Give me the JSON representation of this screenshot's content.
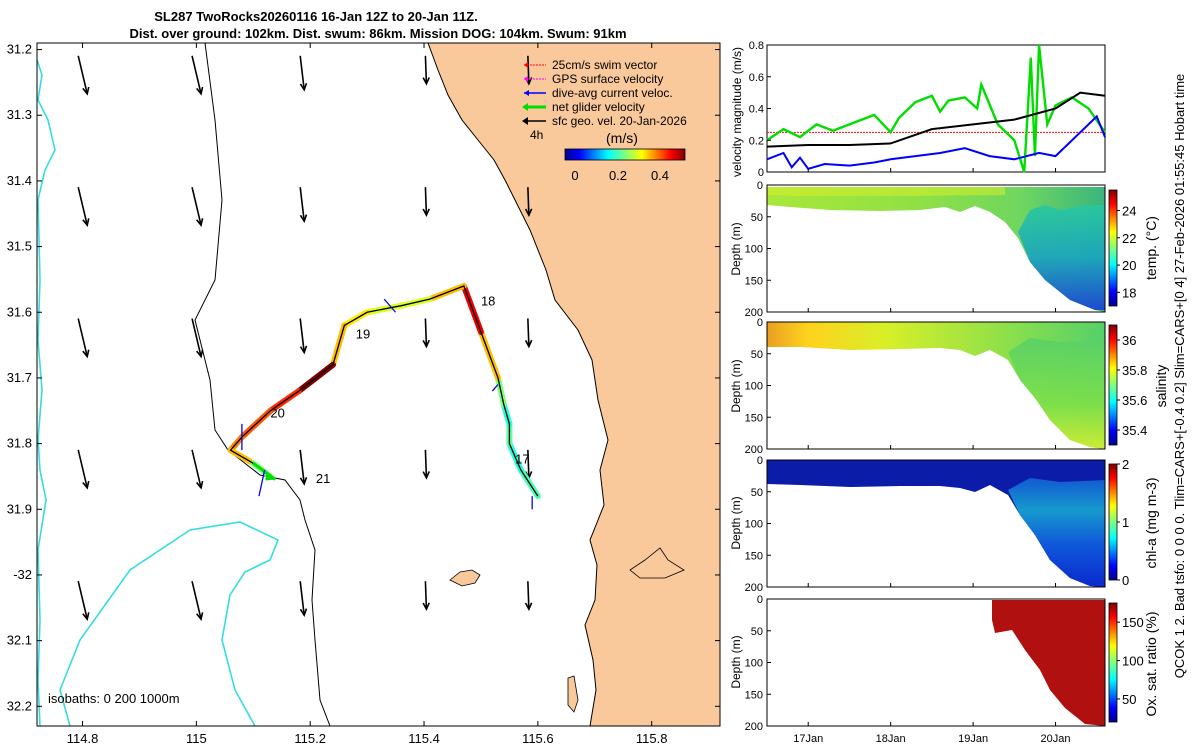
{
  "header": {
    "line1": "SL287 TwoRocks20260116 16-Jan 12Z to 20-Jan 11Z.",
    "line2": "Dist. over ground: 102km. Dist. swum: 86km. Mission DOG: 104km. Swum: 91km"
  },
  "side_text": "QCOK 1  2. Bad tsfo: 0  0  0  0. Tlim=CARS+[-0.4 0.2] Slim=CARS+[0 4] 27-Feb-2026 01:55:45 Hobart time",
  "map": {
    "legend": [
      {
        "label": "25cm/s swim vector",
        "color": "#ff0000"
      },
      {
        "label": "GPS surface velocity",
        "color": "#ff00ff"
      },
      {
        "label": "dive-avg current veloc.",
        "color": "#0000ff"
      },
      {
        "label": "net glider velocity",
        "color": "#00dd00"
      },
      {
        "label": "sfc geo. vel. 20-Jan-2026",
        "color": "#000000"
      }
    ],
    "interval_label": "4h",
    "colorbar_title": "(m/s)",
    "colorbar_ticks": [
      "0",
      "0.2",
      "0.4"
    ],
    "isobath_text": "isobaths: 0   200  1000m",
    "day_labels": [
      "17",
      "18",
      "19",
      "20",
      "21"
    ],
    "land_color": "#f9c89b",
    "isobath_color": "#33dde0"
  },
  "chart_data": [
    {
      "type": "map",
      "title": "SL287 TwoRocks20260116 16-Jan 12Z to 20-Jan 11Z.",
      "x_ticks": [
        114.8,
        115,
        115.2,
        115.4,
        115.6,
        115.8
      ],
      "x_tick_labels": [
        "114.8",
        "115",
        "115.2",
        "115.4",
        "115.6",
        "115.8"
      ],
      "y_ticks": [
        -31.2,
        -31.3,
        -31.4,
        -31.5,
        -31.6,
        -31.7,
        -31.8,
        -31.9,
        -32,
        -32.1,
        -32.2
      ],
      "y_tick_labels": [
        "31.2",
        "31.3",
        "31.4",
        "31.5",
        "31.6",
        "31.7",
        "31.8",
        "31.9",
        "-32",
        "32.1",
        "32.2"
      ],
      "xlim": [
        114.72,
        115.92
      ],
      "ylim": [
        -32.23,
        -31.19
      ],
      "track": [
        {
          "lon": 115.6,
          "lat": -31.88,
          "speed": 0.22
        },
        {
          "lon": 115.57,
          "lat": -31.84,
          "speed": 0.2
        },
        {
          "lon": 115.55,
          "lat": -31.8,
          "speed": 0.23
        },
        {
          "lon": 115.55,
          "lat": -31.77,
          "speed": 0.2
        },
        {
          "lon": 115.54,
          "lat": -31.74,
          "speed": 0.25
        },
        {
          "lon": 115.53,
          "lat": -31.7,
          "speed": 0.35
        },
        {
          "lon": 115.5,
          "lat": -31.63,
          "speed": 0.45
        },
        {
          "lon": 115.47,
          "lat": -31.56,
          "speed": 0.35
        },
        {
          "lon": 115.41,
          "lat": -31.58,
          "speed": 0.3
        },
        {
          "lon": 115.36,
          "lat": -31.59,
          "speed": 0.3
        },
        {
          "lon": 115.3,
          "lat": -31.6,
          "speed": 0.33
        },
        {
          "lon": 115.26,
          "lat": -31.62,
          "speed": 0.35
        },
        {
          "lon": 115.25,
          "lat": -31.65,
          "speed": 0.35
        },
        {
          "lon": 115.24,
          "lat": -31.68,
          "speed": 0.55
        },
        {
          "lon": 115.18,
          "lat": -31.72,
          "speed": 0.42
        },
        {
          "lon": 115.13,
          "lat": -31.75,
          "speed": 0.4
        },
        {
          "lon": 115.08,
          "lat": -31.79,
          "speed": 0.38
        },
        {
          "lon": 115.06,
          "lat": -31.81,
          "speed": 0.35
        },
        {
          "lon": 115.1,
          "lat": -31.83,
          "speed": 0.25
        },
        {
          "lon": 115.13,
          "lat": -31.85,
          "speed": 0.2
        }
      ],
      "day_marks": [
        {
          "label": "17",
          "lon": 115.56,
          "lat": -31.83
        },
        {
          "label": "18",
          "lon": 115.5,
          "lat": -31.59
        },
        {
          "label": "19",
          "lon": 115.28,
          "lat": -31.64
        },
        {
          "label": "20",
          "lon": 115.13,
          "lat": -31.76
        },
        {
          "label": "21",
          "lon": 115.21,
          "lat": -31.86
        }
      ],
      "colorbar": {
        "cmap": "jet",
        "range": [
          0,
          0.5
        ]
      }
    },
    {
      "type": "line",
      "ylabel": "velocity magnitude (m/s)",
      "xlim_days": [
        16.5,
        20.6
      ],
      "ylim": [
        0,
        0.8
      ],
      "y_ticks": [
        0,
        0.2,
        0.4,
        0.6,
        0.8
      ],
      "y_tick_labels": [
        "0",
        "0.2",
        "0.4",
        "0.6",
        "0.8"
      ],
      "series": [
        {
          "name": "swim",
          "color": "#ff0000",
          "x": [
            16.5,
            17.5,
            18.5,
            19.5,
            20.6
          ],
          "y": [
            0.25,
            0.25,
            0.25,
            0.25,
            0.25
          ]
        },
        {
          "name": "net glider velocity",
          "color": "#00dd00",
          "x": [
            16.5,
            16.7,
            16.9,
            17.1,
            17.3,
            17.5,
            17.8,
            18.0,
            18.1,
            18.3,
            18.5,
            18.6,
            18.7,
            18.9,
            19.05,
            19.1,
            19.3,
            19.5,
            19.62,
            19.7,
            19.75,
            19.8,
            19.9,
            20.0,
            20.2,
            20.4,
            20.6
          ],
          "y": [
            0.2,
            0.27,
            0.22,
            0.3,
            0.26,
            0.3,
            0.36,
            0.25,
            0.34,
            0.44,
            0.48,
            0.38,
            0.45,
            0.47,
            0.4,
            0.55,
            0.3,
            0.2,
            0.0,
            0.72,
            0.1,
            0.8,
            0.3,
            0.42,
            0.47,
            0.4,
            0.25
          ]
        },
        {
          "name": "dive-avg current",
          "color": "#0000ff",
          "x": [
            16.5,
            16.7,
            16.8,
            16.9,
            17.0,
            17.2,
            17.5,
            17.8,
            18.0,
            18.3,
            18.6,
            18.9,
            19.2,
            19.5,
            19.8,
            20.0,
            20.2,
            20.4,
            20.5,
            20.6
          ],
          "y": [
            0.08,
            0.12,
            0.03,
            0.09,
            0.02,
            0.05,
            0.04,
            0.06,
            0.08,
            0.1,
            0.12,
            0.15,
            0.1,
            0.08,
            0.12,
            0.1,
            0.2,
            0.3,
            0.35,
            0.22
          ]
        },
        {
          "name": "sfc geo. vel.",
          "color": "#000000",
          "x": [
            16.5,
            17.0,
            17.5,
            18.0,
            18.5,
            19.0,
            19.5,
            20.0,
            20.3,
            20.6
          ],
          "y": [
            0.16,
            0.17,
            0.17,
            0.18,
            0.27,
            0.3,
            0.33,
            0.4,
            0.5,
            0.48
          ]
        }
      ]
    },
    {
      "type": "heatmap",
      "ylabel": "Depth (m)",
      "cbar_label": "temp. (°C)",
      "ylim": [
        0,
        200
      ],
      "y_ticks": [
        0,
        50,
        100,
        150,
        200
      ],
      "y_tick_labels": [
        "0",
        "50",
        "100",
        "150",
        "200"
      ],
      "cbar_range": [
        17,
        25.5
      ],
      "cbar_ticks": [
        18,
        20,
        22,
        24
      ],
      "cbar_tick_labels": [
        "18",
        "20",
        "22",
        "24"
      ]
    },
    {
      "type": "heatmap",
      "ylabel": "Depth (m)",
      "cbar_label": "salinity",
      "ylim": [
        0,
        200
      ],
      "y_ticks": [
        0,
        50,
        100,
        150,
        200
      ],
      "y_tick_labels": [
        "0",
        "50",
        "100",
        "150",
        "200"
      ],
      "cbar_range": [
        35.3,
        36.1
      ],
      "cbar_ticks": [
        35.4,
        35.6,
        35.8,
        36
      ],
      "cbar_tick_labels": [
        "35.4",
        "35.6",
        "35.8",
        "36"
      ]
    },
    {
      "type": "heatmap",
      "ylabel": "Depth (m)",
      "cbar_label": "chl-a (mg m-3)",
      "ylim": [
        0,
        200
      ],
      "y_ticks": [
        0,
        50,
        100,
        150,
        200
      ],
      "y_tick_labels": [
        "0",
        "50",
        "100",
        "150",
        "200"
      ],
      "cbar_range": [
        0,
        2
      ],
      "cbar_ticks": [
        0,
        1,
        2
      ],
      "cbar_tick_labels": [
        "0",
        "1",
        "2"
      ]
    },
    {
      "type": "heatmap",
      "ylabel": "Depth (m)",
      "cbar_label": "Ox. sat. ratio (%)",
      "ylim": [
        0,
        200
      ],
      "y_ticks": [
        0,
        50,
        100,
        150,
        200
      ],
      "y_tick_labels": [
        "0",
        "50",
        "100",
        "150",
        "200"
      ],
      "cbar_range": [
        20,
        175
      ],
      "cbar_ticks": [
        50,
        100,
        150
      ],
      "cbar_tick_labels": [
        "50",
        "100",
        "150"
      ],
      "x_ticks_days": [
        17,
        18,
        19,
        20
      ],
      "x_tick_labels": [
        "17Jan",
        "18Jan",
        "19Jan",
        "20Jan"
      ]
    }
  ]
}
